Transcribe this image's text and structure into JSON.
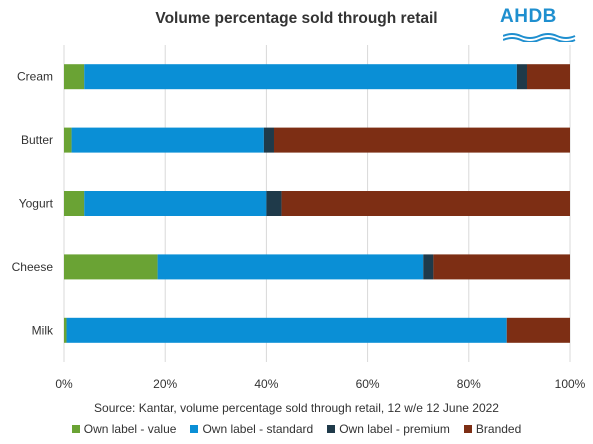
{
  "logo": {
    "text": "AHDB"
  },
  "chart_data": {
    "type": "bar",
    "orientation": "horizontal",
    "stacked": true,
    "title": "Volume percentage sold through retail",
    "source": "Source: Kantar, volume percentage sold through retail, 12 w/e 12 June 2022",
    "categories": [
      "Cream",
      "Butter",
      "Yogurt",
      "Cheese",
      "Milk"
    ],
    "series": [
      {
        "name": "Own label - value",
        "color": "#6aa334",
        "values": [
          4,
          1.5,
          4,
          18.5,
          0.5
        ]
      },
      {
        "name": "Own label - standard",
        "color": "#0a8fd6",
        "values": [
          85.5,
          38,
          36,
          52.5,
          87
        ]
      },
      {
        "name": "Own label - premium",
        "color": "#1f3a4a",
        "values": [
          2,
          2,
          3,
          2,
          0
        ]
      },
      {
        "name": "Branded",
        "color": "#7d2e14",
        "values": [
          8.5,
          58.5,
          57,
          27,
          12.5
        ]
      }
    ],
    "xlim": [
      0,
      100
    ],
    "xticks": [
      "0%",
      "20%",
      "40%",
      "60%",
      "80%",
      "100%"
    ],
    "xtick_values": [
      0,
      20,
      40,
      60,
      80,
      100
    ],
    "grid": "vertical",
    "legend": "bottom"
  }
}
